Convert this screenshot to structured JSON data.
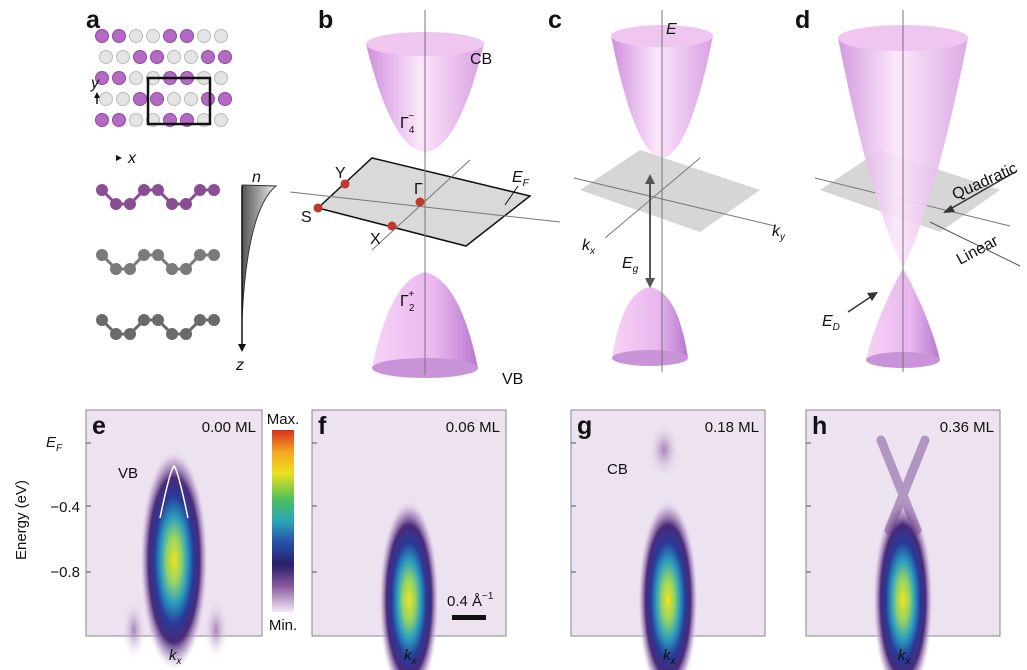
{
  "panels": {
    "a": {
      "label": "a",
      "y_axis": "y",
      "x_axis": "x",
      "density": "n",
      "depth": "z"
    },
    "b": {
      "label": "b",
      "conduction_band": "CB",
      "cb_symmetry": {
        "base": "Γ",
        "sub": "4",
        "sup": "−"
      },
      "fermi_level": {
        "base": "E",
        "sub": "F"
      },
      "points": {
        "Y": "Y",
        "Gamma": "Γ",
        "S": "S",
        "X": "X"
      },
      "vb_symmetry": {
        "base": "Γ",
        "sub": "2",
        "sup": "+"
      },
      "valence_band": "VB"
    },
    "c": {
      "label": "c",
      "energy_axis": "E",
      "ky": {
        "base": "k",
        "sub": "y"
      },
      "kx": {
        "base": "k",
        "sub": "x"
      },
      "gap": {
        "base": "E",
        "sub": "g"
      }
    },
    "d": {
      "label": "d",
      "quadratic": "Quadratic",
      "linear": "Linear",
      "dirac": {
        "base": "E",
        "sub": "D"
      }
    }
  },
  "arpes": {
    "y_axis_title": "Energy (eV)",
    "yticks": [
      {
        "base": "E",
        "sub": "F"
      },
      "−0.4",
      "−0.8"
    ],
    "colorbar": {
      "max": "Max.",
      "min": "Min."
    },
    "scale_bar": {
      "base": "0.4 Å",
      "sup": "−1"
    },
    "panels": [
      {
        "label": "e",
        "coverage": "0.00 ML",
        "band": "VB",
        "x_label": {
          "base": "k",
          "sub": "x"
        }
      },
      {
        "label": "f",
        "coverage": "0.06 ML",
        "x_label": {
          "base": "k",
          "sub": "x"
        }
      },
      {
        "label": "g",
        "coverage": "0.18 ML",
        "band": "CB",
        "x_label": {
          "base": "k",
          "sub": "x"
        }
      },
      {
        "label": "h",
        "coverage": "0.36 ML",
        "x_label": {
          "base": "k",
          "sub": "x"
        }
      }
    ]
  }
}
